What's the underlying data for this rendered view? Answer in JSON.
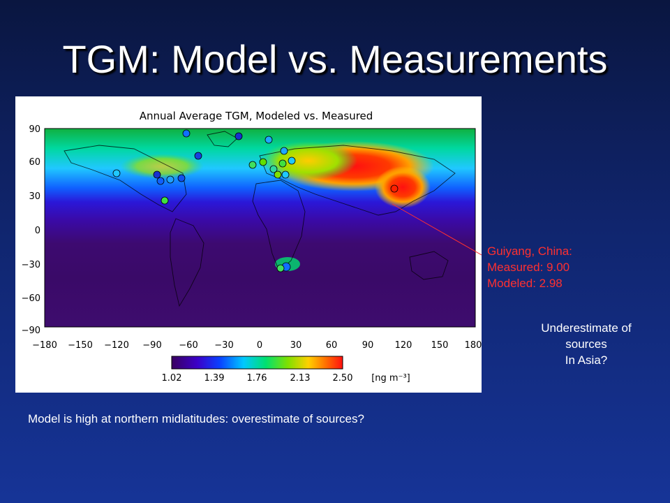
{
  "slide": {
    "title": "TGM: Model vs. Measurements",
    "caption": "Model is high at northern midlatitudes: overestimate of sources?",
    "note_right": [
      "Underestimate of",
      "sources",
      "In Asia?"
    ],
    "annotation": [
      "Guiyang, China:",
      "Measured: 9.00",
      "Modeled: 2.98"
    ],
    "annotation_color": "#ff3030"
  },
  "map": {
    "title": "Annual Average TGM, Modeled vs. Measured",
    "lat_ticks": [
      "90",
      "60",
      "30",
      "0",
      "−30",
      "−60",
      "−90"
    ],
    "lon_ticks": [
      "−180",
      "−150",
      "−120",
      "−90",
      "−60",
      "−30",
      "0",
      "30",
      "60",
      "90",
      "120",
      "150",
      "180"
    ],
    "colorbar_ticks": [
      "1.02",
      "1.39",
      "1.76",
      "2.13",
      "2.50"
    ],
    "colorbar_unit": "[ng m⁻³]",
    "colorbar_colors": [
      "#3a0060",
      "#3b00c8",
      "#0a40ff",
      "#00c8ff",
      "#00e070",
      "#80e000",
      "#ffd000",
      "#ff7000",
      "#ff1010"
    ]
  }
}
